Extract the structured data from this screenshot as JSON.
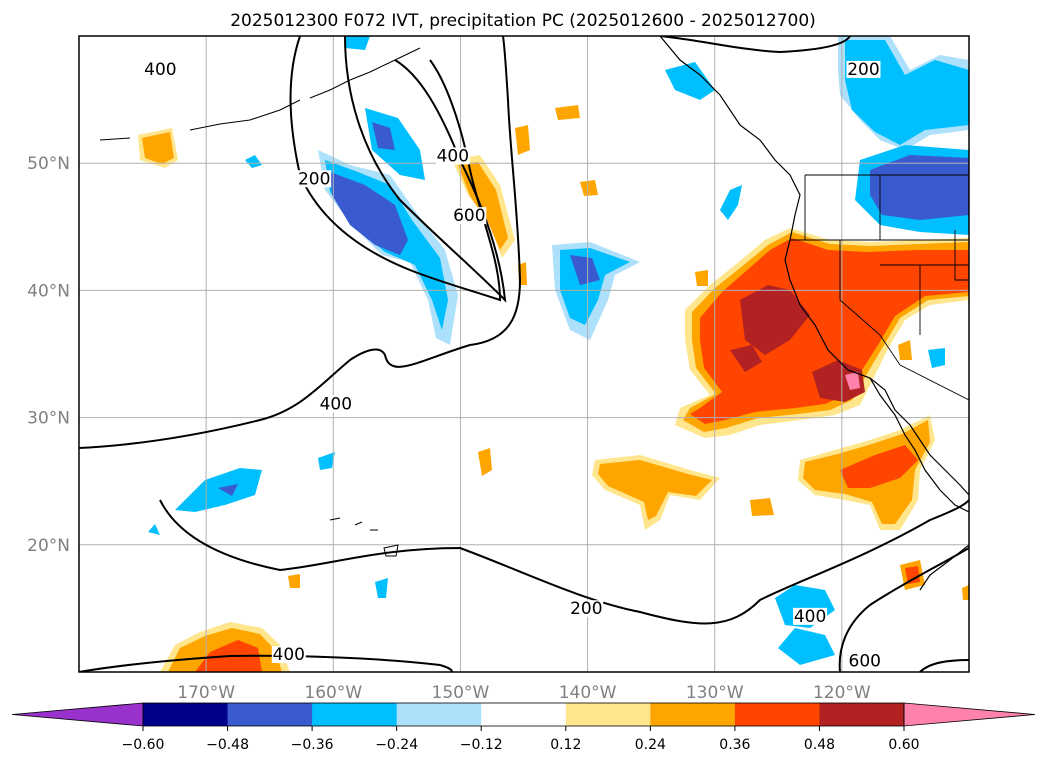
{
  "title": "2025012300 F072 IVT, precipitation PC (2025012600 - 2025012700)",
  "map": {
    "lon_range": [
      -180,
      -110
    ],
    "lat_range": [
      10,
      60
    ],
    "lon_ticks": [
      {
        "value": -170,
        "label": "170°W"
      },
      {
        "value": -160,
        "label": "160°W"
      },
      {
        "value": -150,
        "label": "150°W"
      },
      {
        "value": -140,
        "label": "140°W"
      },
      {
        "value": -130,
        "label": "130°W"
      },
      {
        "value": -120,
        "label": "120°W"
      }
    ],
    "lat_ticks": [
      {
        "value": 50,
        "label": "50°N"
      },
      {
        "value": 40,
        "label": "40°N"
      },
      {
        "value": 30,
        "label": "30°N"
      },
      {
        "value": 20,
        "label": "20°N"
      }
    ],
    "gridlines": true,
    "contour_labels": [
      {
        "text": "400",
        "lon": -173.6,
        "lat": 57.1
      },
      {
        "text": "400",
        "lon": -150.6,
        "lat": 50.3
      },
      {
        "text": "200",
        "lon": -118.3,
        "lat": 57.1
      },
      {
        "text": "200",
        "lon": -161.5,
        "lat": 48.5
      },
      {
        "text": "600",
        "lon": -149.3,
        "lat": 45.6
      },
      {
        "text": "400",
        "lon": -159.8,
        "lat": 30.8
      },
      {
        "text": "200",
        "lon": -140.1,
        "lat": 14.7
      },
      {
        "text": "400",
        "lon": -122.5,
        "lat": 14.1
      },
      {
        "text": "400",
        "lon": -163.5,
        "lat": 11.1
      },
      {
        "text": "600",
        "lon": -118.2,
        "lat": 10.6
      }
    ]
  },
  "colorbar": {
    "ticks": [
      "−0.60",
      "−0.48",
      "−0.36",
      "−0.24",
      "−0.12",
      "0.12",
      "0.24",
      "0.36",
      "0.48",
      "0.60"
    ],
    "colors": [
      "#9932CC",
      "#00008B",
      "#3A5BCF",
      "#00BFFF",
      "#ADE0FA",
      "#FFFFFF",
      "#FFE68C",
      "#FFA500",
      "#FF4500",
      "#B22222",
      "#FF82AB"
    ]
  },
  "colors": {
    "ivt_contour": "#000000",
    "coastline": "#000000",
    "grid": "#b0b0b0",
    "tick_label": "#808080"
  }
}
